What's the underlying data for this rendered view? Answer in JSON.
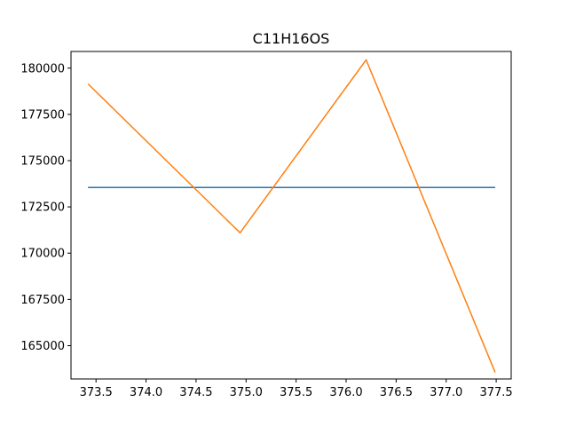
{
  "chart_data": {
    "type": "line",
    "title": "C11H16OS",
    "xlabel": "",
    "ylabel": "",
    "xlim": [
      373.25,
      377.65
    ],
    "ylim": [
      163200,
      180900
    ],
    "x_ticks": [
      373.5,
      374.0,
      374.5,
      375.0,
      375.5,
      376.0,
      376.5,
      377.0,
      377.5
    ],
    "x_tick_labels": [
      "373.5",
      "374.0",
      "374.5",
      "375.0",
      "375.5",
      "376.0",
      "376.5",
      "377.0",
      "377.5"
    ],
    "y_ticks": [
      165000,
      167500,
      170000,
      172500,
      175000,
      177500,
      180000
    ],
    "y_tick_labels": [
      "165000",
      "167500",
      "170000",
      "172500",
      "175000",
      "177500",
      "180000"
    ],
    "grid": false,
    "series": [
      {
        "color": "#1f77b4",
        "x": [
          373.42,
          377.49
        ],
        "y": [
          173550,
          173550
        ]
      },
      {
        "color": "#ff7f0e",
        "x": [
          373.42,
          374.94,
          376.2,
          377.49
        ],
        "y": [
          179150,
          171100,
          180450,
          163550
        ]
      }
    ]
  }
}
